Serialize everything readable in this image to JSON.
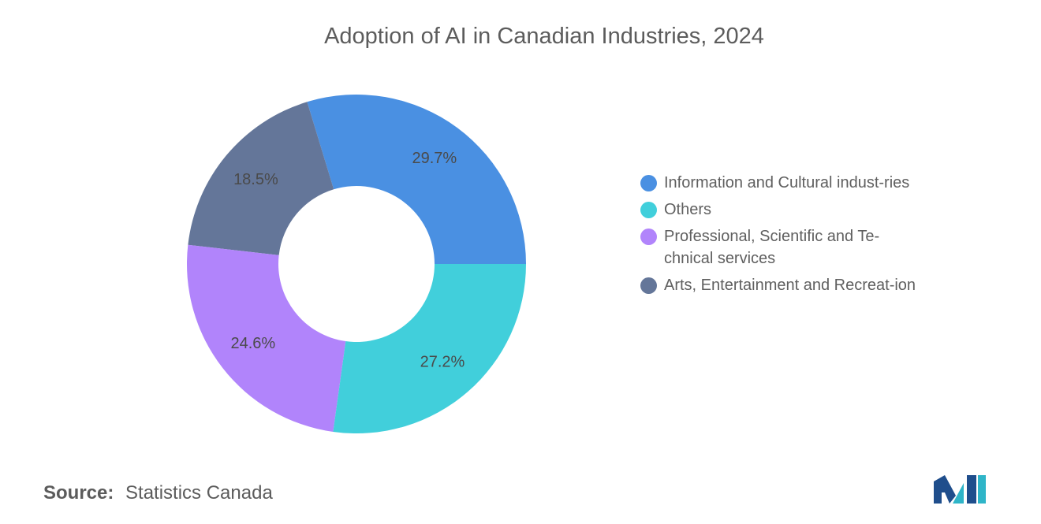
{
  "chart_data": {
    "type": "pie",
    "variant": "donut",
    "title": "Adoption of AI in Canadian Industries, 2024",
    "categories": [
      "Information and Cultural industries",
      "Others",
      "Professional, Scientific and Technical services",
      "Arts, Entertainment and Recreation"
    ],
    "legend_text": [
      "Information and Cultural indust-ries",
      "Others",
      "Professional, Scientific and Te-chnical services",
      "Arts, Entertainment and Recreat-ion"
    ],
    "values": [
      29.7,
      27.2,
      24.6,
      18.5
    ],
    "data_labels": [
      "29.7%",
      "27.2%",
      "24.6%",
      "18.5%"
    ],
    "drawing_order": [
      0,
      3,
      2,
      1
    ],
    "colors": [
      "#4a90e2",
      "#41cfdb",
      "#b184fb",
      "#647699"
    ],
    "legend_placement": "right",
    "unit": "%"
  },
  "source": {
    "label": "Source:",
    "text": "Statistics Canada"
  },
  "logo": {
    "icon": "mordor-intelligence-logo-icon",
    "colors": [
      "#1f4e8c",
      "#2fb5c8"
    ]
  }
}
